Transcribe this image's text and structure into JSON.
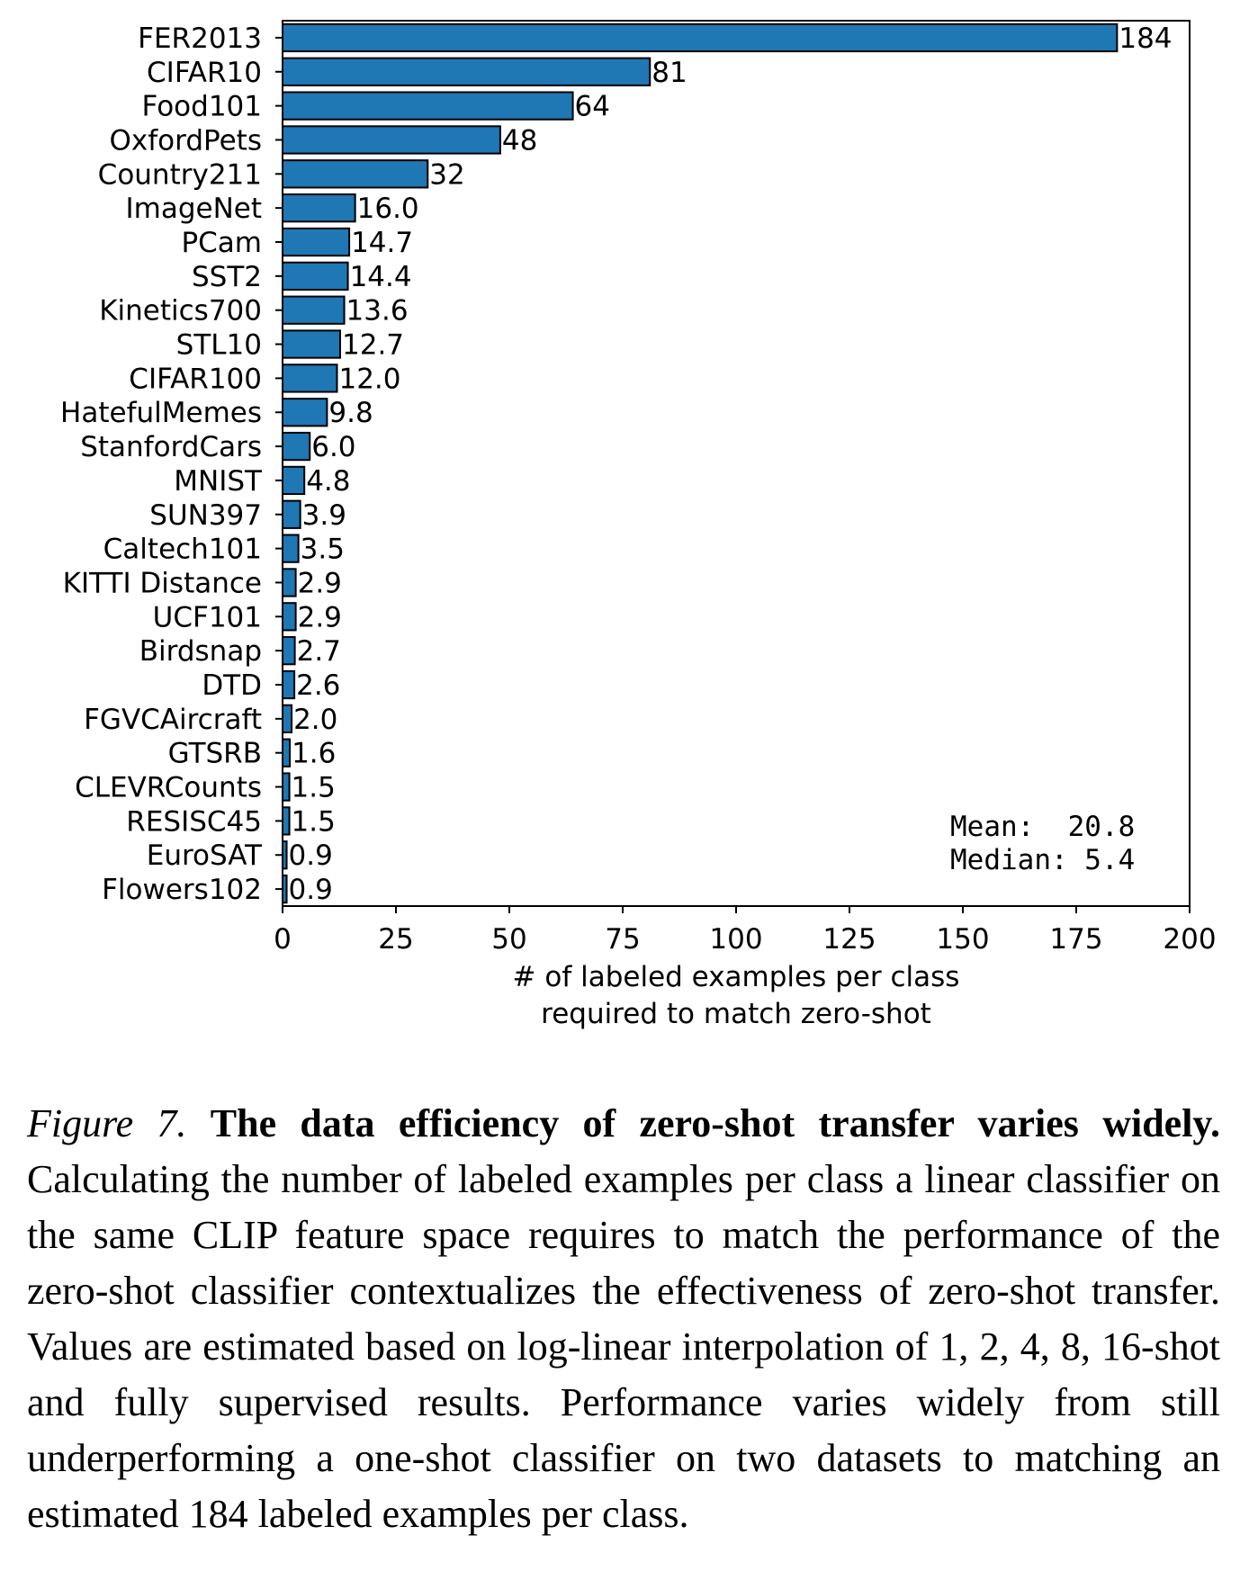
{
  "chart_data": {
    "type": "bar",
    "orientation": "horizontal",
    "categories": [
      "FER2013",
      "CIFAR10",
      "Food101",
      "OxfordPets",
      "Country211",
      "ImageNet",
      "PCam",
      "SST2",
      "Kinetics700",
      "STL10",
      "CIFAR100",
      "HatefulMemes",
      "StanfordCars",
      "MNIST",
      "SUN397",
      "Caltech101",
      "KITTI Distance",
      "UCF101",
      "Birdsnap",
      "DTD",
      "FGVCAircraft",
      "GTSRB",
      "CLEVRCounts",
      "RESISC45",
      "EuroSAT",
      "Flowers102"
    ],
    "values": [
      184,
      81,
      64,
      48,
      32,
      16.0,
      14.7,
      14.4,
      13.6,
      12.7,
      12.0,
      9.8,
      6.0,
      4.8,
      3.9,
      3.5,
      2.9,
      2.9,
      2.7,
      2.6,
      2.0,
      1.6,
      1.5,
      1.5,
      0.9,
      0.9
    ],
    "value_labels": [
      "184",
      "81",
      "64",
      "48",
      "32",
      "16.0",
      "14.7",
      "14.4",
      "13.6",
      "12.7",
      "12.0",
      "9.8",
      "6.0",
      "4.8",
      "3.9",
      "3.5",
      "2.9",
      "2.9",
      "2.7",
      "2.6",
      "2.0",
      "1.6",
      "1.5",
      "1.5",
      "0.9",
      "0.9"
    ],
    "xlim": [
      0,
      200
    ],
    "xticks": [
      0,
      25,
      50,
      75,
      100,
      125,
      150,
      175,
      200
    ],
    "xlabel_lines": [
      "# of labeled examples per class",
      "required to match zero-shot"
    ],
    "ylabel": "",
    "grid": false,
    "bar_color": "#1f77b4",
    "edge_color": "#000000",
    "stats": {
      "mean_line": "Mean:  20.8",
      "median_line": "Median: 5.4"
    }
  },
  "caption": {
    "figure_label": "Figure 7.",
    "bold_text": "The data efficiency of zero-shot transfer varies widely.",
    "body_text": "Calculating the number of labeled examples per class a linear classifier on the same CLIP feature space requires to match the performance of the zero-shot classifier contextualizes the effectiveness of zero-shot transfer. Values are estimated based on log-linear interpolation of 1, 2, 4, 8, 16-shot and fully supervised results. Performance varies widely from still underperforming a one-shot classifier on two datasets to matching an estimated 184 labeled examples per class."
  }
}
